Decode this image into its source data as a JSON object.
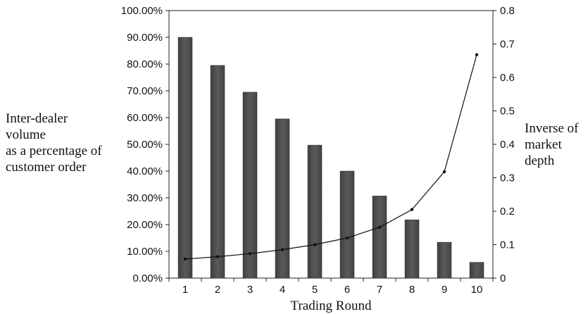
{
  "chart_data": {
    "type": "bar",
    "xlabel": "Trading Round",
    "y_left_label": [
      "Inter-dealer",
      "volume",
      "as a percentage of",
      "customer order"
    ],
    "y_right_label": [
      "Inverse of",
      "market",
      "depth"
    ],
    "categories": [
      "1",
      "2",
      "3",
      "4",
      "5",
      "6",
      "7",
      "8",
      "9",
      "10"
    ],
    "series": [
      {
        "type": "bar",
        "axis": "left",
        "values": [
          0.9,
          0.795,
          0.695,
          0.595,
          0.497,
          0.4,
          0.307,
          0.218,
          0.134,
          0.059
        ]
      },
      {
        "type": "line",
        "axis": "right",
        "values": [
          0.057,
          0.064,
          0.073,
          0.085,
          0.1,
          0.12,
          0.152,
          0.205,
          0.318,
          0.668
        ]
      }
    ],
    "y_left": {
      "lim": [
        0,
        1
      ],
      "ticks": [
        0,
        0.1,
        0.2,
        0.3,
        0.4,
        0.5,
        0.6,
        0.7,
        0.8,
        0.9,
        1.0
      ],
      "tick_labels": [
        "0.00%",
        "10.00%",
        "20.00%",
        "30.00%",
        "40.00%",
        "50.00%",
        "60.00%",
        "70.00%",
        "80.00%",
        "90.00%",
        "100.00%"
      ]
    },
    "y_right": {
      "lim": [
        0,
        0.8
      ],
      "ticks": [
        0,
        0.1,
        0.2,
        0.3,
        0.4,
        0.5,
        0.6,
        0.7,
        0.8
      ],
      "tick_labels": [
        "0",
        "0.1",
        "0.2",
        "0.3",
        "0.4",
        "0.5",
        "0.6",
        "0.7",
        "0.8"
      ]
    },
    "grid": false,
    "legend": "none",
    "colors": {
      "bar": "#5a5a5a",
      "line": "#111111"
    }
  }
}
